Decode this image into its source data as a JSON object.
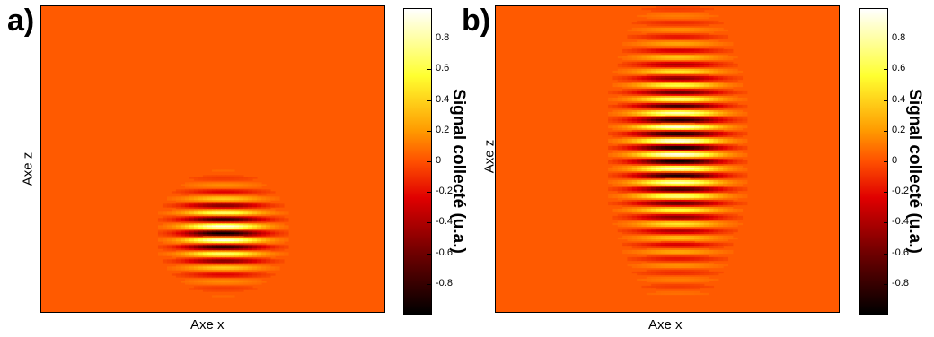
{
  "panels": [
    {
      "label": "a)",
      "xlabel": "Axe x",
      "ylabel": "Axe z",
      "colorbar_label": "Signal collecté (u.a.)",
      "colorbar_ticks": [
        "0.8",
        "0.6",
        "0.4",
        "0.2",
        "0",
        "-0.2",
        "-0.4",
        "-0.6",
        "-0.8"
      ]
    },
    {
      "label": "b)",
      "xlabel": "Axe x",
      "ylabel": "Axe z",
      "colorbar_label": "Signal collecté (u.a.)",
      "colorbar_ticks": [
        "0.8",
        "0.6",
        "0.4",
        "0.2",
        "0",
        "-0.2",
        "-0.4",
        "-0.6",
        "-0.8"
      ]
    }
  ],
  "chart_data": [
    {
      "type": "heatmap",
      "title": "a)",
      "xlabel": "Axe x",
      "ylabel": "Axe z",
      "colorbar_label": "Signal collecté (u.a.)",
      "clim": [
        -1,
        1
      ],
      "colormap": "hot",
      "colorbar_ticks": [
        0.8,
        0.6,
        0.4,
        0.2,
        0,
        -0.2,
        -0.4,
        -0.6,
        -0.8
      ],
      "pattern": {
        "description_shown": "localized horizontal fringe pattern",
        "center_x_fraction_of_axis": 0.53,
        "center_z_fraction_of_axis": 0.26,
        "fringe_count_visible": 9,
        "peak_value": -1
      }
    },
    {
      "type": "heatmap",
      "title": "b)",
      "xlabel": "Axe x",
      "ylabel": "Axe z",
      "colorbar_label": "Signal collecté (u.a.)",
      "clim": [
        -1,
        1
      ],
      "colormap": "hot",
      "colorbar_ticks": [
        0.8,
        0.6,
        0.4,
        0.2,
        0,
        -0.2,
        -0.4,
        -0.6,
        -0.8
      ],
      "pattern": {
        "description_shown": "elongated vertical stack of horizontal fringes",
        "center_x_fraction_of_axis": 0.53,
        "center_z_fraction_of_axis": 0.54,
        "fringe_count_visible": 27,
        "peak_value": -1
      }
    }
  ]
}
